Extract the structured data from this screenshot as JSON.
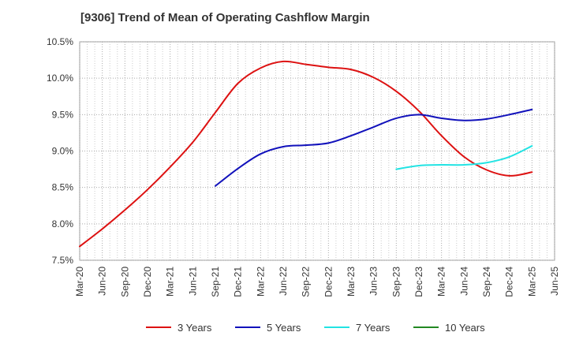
{
  "chart_data": {
    "type": "line",
    "title": "[9306]  Trend of Mean of Operating Cashflow Margin",
    "xlabel": "",
    "ylabel": "",
    "x_ticks": [
      "Mar-20",
      "Jun-20",
      "Sep-20",
      "Dec-20",
      "Mar-21",
      "Jun-21",
      "Sep-21",
      "Dec-21",
      "Mar-22",
      "Jun-22",
      "Sep-22",
      "Dec-22",
      "Mar-23",
      "Jun-23",
      "Sep-23",
      "Dec-23",
      "Mar-24",
      "Jun-24",
      "Sep-24",
      "Dec-24",
      "Mar-25",
      "Jun-25"
    ],
    "y_ticks": [
      "7.5%",
      "8.0%",
      "8.5%",
      "9.0%",
      "9.5%",
      "10.0%",
      "10.5%"
    ],
    "ylim": [
      7.5,
      10.5
    ],
    "y_unit": "%",
    "grid": true,
    "legend_position": "bottom",
    "series": [
      {
        "name": "3 Years",
        "color": "#dd1111",
        "points": [
          [
            "Mar-20",
            7.69
          ],
          [
            "Jun-20",
            7.93
          ],
          [
            "Sep-20",
            8.19
          ],
          [
            "Dec-20",
            8.47
          ],
          [
            "Mar-21",
            8.78
          ],
          [
            "Jun-21",
            9.12
          ],
          [
            "Sep-21",
            9.53
          ],
          [
            "Dec-21",
            9.93
          ],
          [
            "Mar-22",
            10.14
          ],
          [
            "Jun-22",
            10.23
          ],
          [
            "Sep-22",
            10.19
          ],
          [
            "Dec-22",
            10.15
          ],
          [
            "Mar-23",
            10.12
          ],
          [
            "Jun-23",
            10.01
          ],
          [
            "Sep-23",
            9.82
          ],
          [
            "Dec-23",
            9.55
          ],
          [
            "Mar-24",
            9.21
          ],
          [
            "Jun-24",
            8.92
          ],
          [
            "Sep-24",
            8.74
          ],
          [
            "Dec-24",
            8.66
          ],
          [
            "Mar-25",
            8.71
          ]
        ]
      },
      {
        "name": "5 Years",
        "color": "#1111bb",
        "points": [
          [
            "Sep-21",
            8.52
          ],
          [
            "Dec-21",
            8.76
          ],
          [
            "Mar-22",
            8.96
          ],
          [
            "Jun-22",
            9.06
          ],
          [
            "Sep-22",
            9.08
          ],
          [
            "Dec-22",
            9.11
          ],
          [
            "Mar-23",
            9.21
          ],
          [
            "Jun-23",
            9.33
          ],
          [
            "Sep-23",
            9.45
          ],
          [
            "Dec-23",
            9.5
          ],
          [
            "Mar-24",
            9.45
          ],
          [
            "Jun-24",
            9.42
          ],
          [
            "Sep-24",
            9.44
          ],
          [
            "Dec-24",
            9.5
          ],
          [
            "Mar-25",
            9.57
          ]
        ]
      },
      {
        "name": "7 Years",
        "color": "#22e3e3",
        "points": [
          [
            "Sep-23",
            8.75
          ],
          [
            "Dec-23",
            8.8
          ],
          [
            "Mar-24",
            8.81
          ],
          [
            "Jun-24",
            8.81
          ],
          [
            "Sep-24",
            8.84
          ],
          [
            "Dec-24",
            8.92
          ],
          [
            "Mar-25",
            9.07
          ]
        ]
      },
      {
        "name": "10 Years",
        "color": "#228822",
        "points": []
      }
    ]
  }
}
